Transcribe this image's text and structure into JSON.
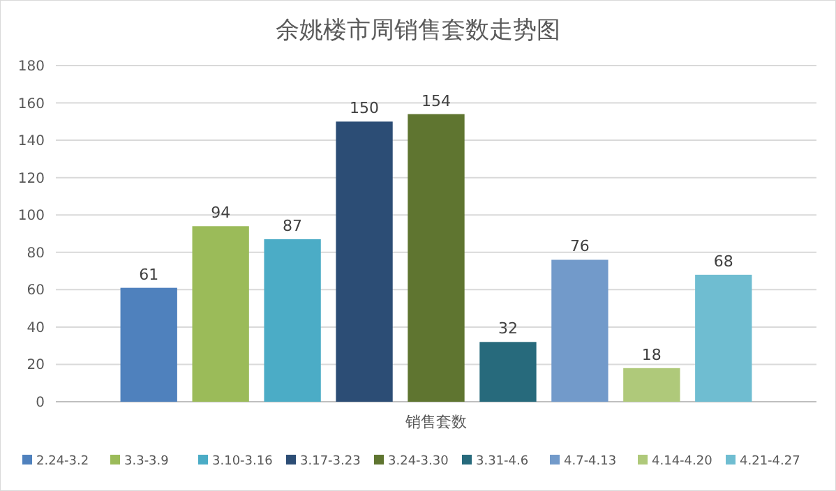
{
  "chart_data": {
    "type": "bar",
    "title": "余姚楼市周销售套数走势图",
    "categories": [
      "销售套数"
    ],
    "series": [
      {
        "name": "2.24-3.2",
        "color": "#4f81bd",
        "values": [
          61
        ]
      },
      {
        "name": "3.3-3.9",
        "color": "#9bbb59",
        "values": [
          94
        ]
      },
      {
        "name": "3.10-3.16",
        "color": "#4bacc6",
        "values": [
          87
        ]
      },
      {
        "name": "3.17-3.23",
        "color": "#2c4d75",
        "values": [
          150
        ]
      },
      {
        "name": "3.24-3.30",
        "color": "#5f7530",
        "values": [
          154
        ]
      },
      {
        "name": "3.31-4.6",
        "color": "#276a7c",
        "values": [
          32
        ]
      },
      {
        "name": "4.7-4.13",
        "color": "#729aca",
        "values": [
          76
        ]
      },
      {
        "name": "4.14-4.20",
        "color": "#afc97a",
        "values": [
          18
        ]
      },
      {
        "name": "4.21-4.27",
        "color": "#6fbdd1",
        "values": [
          68
        ]
      }
    ],
    "ylim": [
      0,
      180
    ],
    "yticks": [
      0,
      20,
      40,
      60,
      80,
      100,
      120,
      140,
      160,
      180
    ],
    "grid": "y",
    "legend": "bottom",
    "data_labels": true
  }
}
